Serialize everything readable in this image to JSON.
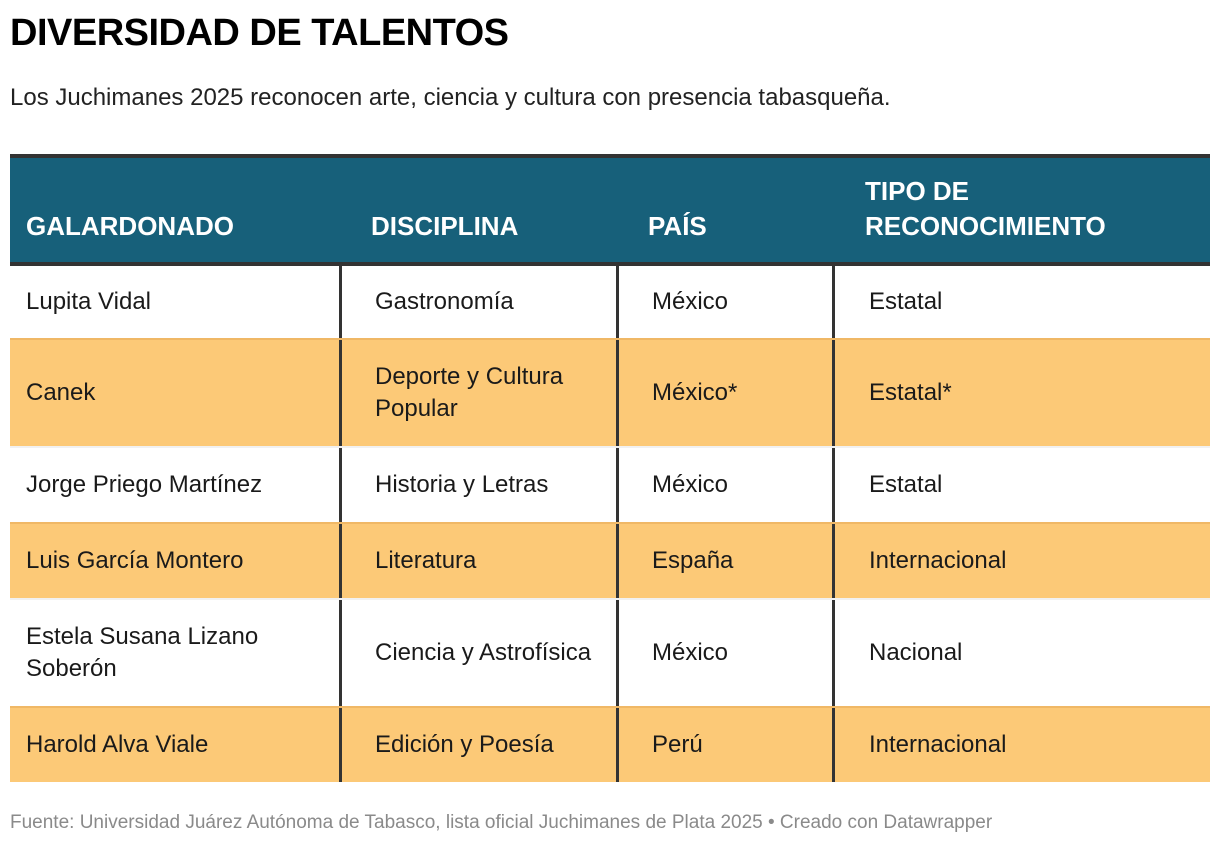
{
  "header": {
    "title": "DIVERSIDAD DE TALENTOS",
    "subtitle": "Los Juchimanes 2025 reconocen arte, ciencia y cultura con presencia tabasqueña."
  },
  "table": {
    "columns": [
      "GALARDONADO",
      "DISCIPLINA",
      "PAÍS",
      "TIPO DE RECONOCIMIENTO"
    ],
    "column_header_lines": {
      "tipo_line1": "TIPO DE",
      "tipo_line2": "RECONOCIMIENTO"
    },
    "rows": [
      {
        "galardonado": "Lupita Vidal",
        "disciplina": "Gastronomía",
        "pais": "México",
        "tipo": "Estatal",
        "highlight": false
      },
      {
        "galardonado": "Canek",
        "disciplina": "Deporte y Cultura Popular",
        "pais": "México*",
        "tipo": "Estatal*",
        "highlight": true
      },
      {
        "galardonado": "Jorge Priego Martínez",
        "disciplina": "Historia y Letras",
        "pais": "México",
        "tipo": "Estatal",
        "highlight": false
      },
      {
        "galardonado": "Luis García Montero",
        "disciplina": "Literatura",
        "pais": "España",
        "tipo": "Internacional",
        "highlight": true
      },
      {
        "galardonado": "Estela Susana Lizano Soberón",
        "disciplina": "Ciencia y Astrofísica",
        "pais": "México",
        "tipo": "Nacional",
        "highlight": false
      },
      {
        "galardonado": "Harold Alva Viale",
        "disciplina": "Edición y Poesía",
        "pais": "Perú",
        "tipo": "Internacional",
        "highlight": true
      }
    ]
  },
  "footer": {
    "source": "Fuente: Universidad Juárez Autónoma de Tabasco, lista oficial Juchimanes de Plata 2025 • Creado con Datawrapper"
  },
  "colors": {
    "header_bg": "#17607a",
    "highlight_row": "#fcc977",
    "divider": "#333333"
  },
  "chart_data": {
    "type": "table",
    "title": "DIVERSIDAD DE TALENTOS",
    "subtitle": "Los Juchimanes 2025 reconocen arte, ciencia y cultura con presencia tabasqueña.",
    "columns": [
      "GALARDONADO",
      "DISCIPLINA",
      "PAÍS",
      "TIPO DE RECONOCIMIENTO"
    ],
    "rows": [
      [
        "Lupita Vidal",
        "Gastronomía",
        "México",
        "Estatal"
      ],
      [
        "Canek",
        "Deporte y Cultura Popular",
        "México*",
        "Estatal*"
      ],
      [
        "Jorge Priego Martínez",
        "Historia y Letras",
        "México",
        "Estatal"
      ],
      [
        "Luis García Montero",
        "Literatura",
        "España",
        "Internacional"
      ],
      [
        "Estela Susana Lizano Soberón",
        "Ciencia y Astrofísica",
        "México",
        "Nacional"
      ],
      [
        "Harold Alva Viale",
        "Edición y Poesía",
        "Perú",
        "Internacional"
      ]
    ],
    "highlighted_rows": [
      1,
      3,
      5
    ],
    "source": "Fuente: Universidad Juárez Autónoma de Tabasco, lista oficial Juchimanes de Plata 2025 • Creado con Datawrapper"
  }
}
